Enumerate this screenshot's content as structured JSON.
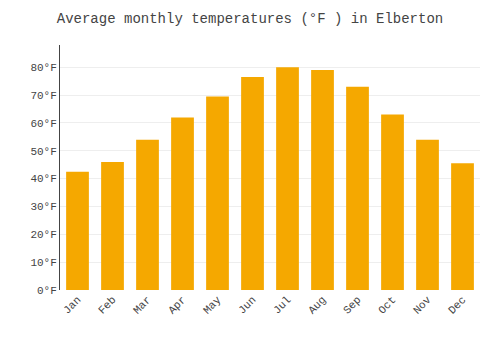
{
  "chart_data": {
    "type": "bar",
    "title": "Average monthly temperatures (°F ) in Elberton",
    "categories": [
      "Jan",
      "Feb",
      "Mar",
      "Apr",
      "May",
      "Jun",
      "Jul",
      "Aug",
      "Sep",
      "Oct",
      "Nov",
      "Dec"
    ],
    "values": [
      42.5,
      46,
      54,
      62,
      69.5,
      76.5,
      80,
      79,
      73,
      63,
      54,
      45.5
    ],
    "color": "#F5A800",
    "ylim": [
      0,
      88
    ],
    "yticks": [
      {
        "value": 0,
        "label": "0°F"
      },
      {
        "value": 10,
        "label": "10°F"
      },
      {
        "value": 20,
        "label": "20°F"
      },
      {
        "value": 30,
        "label": "30°F"
      },
      {
        "value": 40,
        "label": "40°F"
      },
      {
        "value": 50,
        "label": "50°F"
      },
      {
        "value": 60,
        "label": "60°F"
      },
      {
        "value": 70,
        "label": "70°F"
      },
      {
        "value": 80,
        "label": "80°F"
      }
    ],
    "grid": true
  }
}
